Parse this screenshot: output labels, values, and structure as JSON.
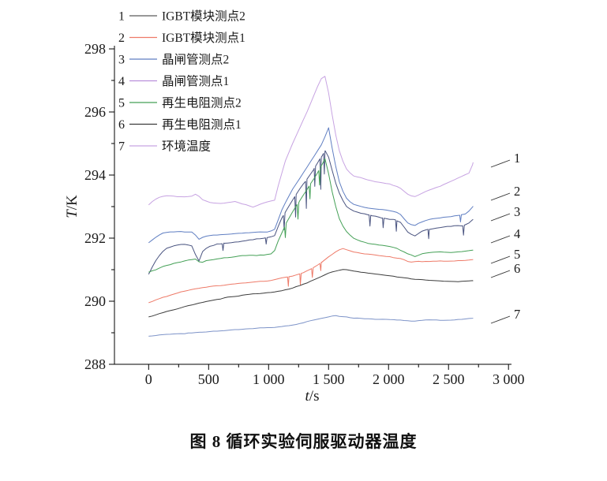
{
  "figure": {
    "caption": "图 8  循环实验伺服驱动器温度"
  },
  "chart_data": {
    "type": "line",
    "xlabel": "t/s",
    "ylabel": "T/K",
    "xlabel_italic": "t",
    "xlabel_unit": "/s",
    "ylabel_italic": "T",
    "ylabel_unit": "/K",
    "xlim": [
      -285,
      3025
    ],
    "ylim": [
      288,
      298
    ],
    "x_ticks": [
      0,
      500,
      1000,
      1500,
      2000,
      2500,
      3000
    ],
    "x_tick_labels": [
      "0",
      "500",
      "1 000",
      "1 500",
      "2 000",
      "2 500",
      "3 000"
    ],
    "y_ticks": [
      288,
      290,
      292,
      294,
      296,
      298
    ],
    "y_tick_labels": [
      "288",
      "290",
      "292",
      "294",
      "296",
      "298"
    ],
    "grid": false,
    "legend_position": "top-left",
    "legend": [
      {
        "num": "1",
        "label": "IGBT模块测点2",
        "color": "#5a5a5a"
      },
      {
        "num": "2",
        "label": "IGBT模块测点1",
        "color": "#ee7a68"
      },
      {
        "num": "3",
        "label": "晶闸管测点2",
        "color": "#5f7ec2"
      },
      {
        "num": "4",
        "label": "晶闸管测点1",
        "color": "#b98fdc"
      },
      {
        "num": "5",
        "label": "再生电阻测点2",
        "color": "#44a056"
      },
      {
        "num": "6",
        "label": "再生电阻测点1",
        "color": "#3c3c3c"
      },
      {
        "num": "7",
        "label": "环境温度",
        "color": "#c7a3e2"
      }
    ],
    "right_labels": [
      {
        "num": "1",
        "T": 294.55
      },
      {
        "num": "2",
        "T": 293.5
      },
      {
        "num": "3",
        "T": 292.85
      },
      {
        "num": "4",
        "T": 292.15
      },
      {
        "num": "5",
        "T": 291.5
      },
      {
        "num": "6",
        "T": 291.05
      },
      {
        "num": "7",
        "T": 289.6
      }
    ],
    "series": [
      {
        "num": "1",
        "name": "IGBT模块测点2",
        "color": "#c7a3e2",
        "amp": 0.028,
        "points": [
          [
            0,
            293.05
          ],
          [
            40,
            293.2
          ],
          [
            90,
            293.3
          ],
          [
            150,
            293.35
          ],
          [
            260,
            293.3
          ],
          [
            350,
            293.32
          ],
          [
            400,
            293.4
          ],
          [
            450,
            293.22
          ],
          [
            520,
            293.12
          ],
          [
            620,
            293.1
          ],
          [
            720,
            293.15
          ],
          [
            820,
            293.05
          ],
          [
            870,
            292.98
          ],
          [
            950,
            293.1
          ],
          [
            1050,
            293.2
          ],
          [
            1090,
            293.8
          ],
          [
            1140,
            294.45
          ],
          [
            1200,
            295.0
          ],
          [
            1260,
            295.5
          ],
          [
            1320,
            296.0
          ],
          [
            1380,
            296.55
          ],
          [
            1430,
            297.0
          ],
          [
            1465,
            297.2
          ],
          [
            1490,
            296.85
          ],
          [
            1515,
            296.25
          ],
          [
            1555,
            295.35
          ],
          [
            1600,
            294.6
          ],
          [
            1650,
            294.2
          ],
          [
            1700,
            293.98
          ],
          [
            1800,
            293.88
          ],
          [
            1900,
            293.78
          ],
          [
            2000,
            293.72
          ],
          [
            2090,
            293.62
          ],
          [
            2150,
            293.42
          ],
          [
            2210,
            293.3
          ],
          [
            2260,
            293.38
          ],
          [
            2320,
            293.5
          ],
          [
            2420,
            293.62
          ],
          [
            2520,
            293.8
          ],
          [
            2620,
            293.98
          ],
          [
            2685,
            294.08
          ],
          [
            2705,
            294.4
          ]
        ],
        "spikes": []
      },
      {
        "num": "2",
        "name": "IGBT模块测点1",
        "color": "#5f7ec2",
        "amp": 0.03,
        "points": [
          [
            0,
            291.85
          ],
          [
            50,
            292.0
          ],
          [
            110,
            292.15
          ],
          [
            170,
            292.2
          ],
          [
            280,
            292.2
          ],
          [
            370,
            292.18
          ],
          [
            420,
            291.95
          ],
          [
            470,
            292.05
          ],
          [
            540,
            292.1
          ],
          [
            650,
            292.12
          ],
          [
            760,
            292.15
          ],
          [
            880,
            292.18
          ],
          [
            1000,
            292.2
          ],
          [
            1055,
            292.28
          ],
          [
            1100,
            292.8
          ],
          [
            1150,
            293.2
          ],
          [
            1210,
            293.62
          ],
          [
            1270,
            293.95
          ],
          [
            1330,
            294.3
          ],
          [
            1390,
            294.65
          ],
          [
            1440,
            294.95
          ],
          [
            1480,
            295.3
          ],
          [
            1500,
            295.5
          ],
          [
            1520,
            295.05
          ],
          [
            1555,
            294.35
          ],
          [
            1595,
            293.7
          ],
          [
            1640,
            293.3
          ],
          [
            1700,
            293.08
          ],
          [
            1800,
            292.98
          ],
          [
            1900,
            292.92
          ],
          [
            2000,
            292.88
          ],
          [
            2090,
            292.8
          ],
          [
            2155,
            292.5
          ],
          [
            2210,
            292.38
          ],
          [
            2265,
            292.5
          ],
          [
            2350,
            292.6
          ],
          [
            2450,
            292.66
          ],
          [
            2550,
            292.7
          ],
          [
            2650,
            292.76
          ],
          [
            2705,
            293.0
          ]
        ],
        "spikes": [
          [
            2600,
            0.22
          ]
        ]
      },
      {
        "num": "3",
        "name": "晶闸管测点2",
        "color": "#4a5480",
        "amp": 0.05,
        "points": [
          [
            0,
            290.85
          ],
          [
            45,
            291.2
          ],
          [
            95,
            291.5
          ],
          [
            145,
            291.65
          ],
          [
            210,
            291.75
          ],
          [
            310,
            291.8
          ],
          [
            375,
            291.73
          ],
          [
            410,
            291.15
          ],
          [
            445,
            291.55
          ],
          [
            490,
            291.7
          ],
          [
            560,
            291.8
          ],
          [
            660,
            291.85
          ],
          [
            760,
            291.9
          ],
          [
            860,
            291.95
          ],
          [
            960,
            292.0
          ],
          [
            1050,
            292.08
          ],
          [
            1100,
            292.55
          ],
          [
            1155,
            292.95
          ],
          [
            1215,
            293.3
          ],
          [
            1275,
            293.65
          ],
          [
            1335,
            293.95
          ],
          [
            1395,
            294.3
          ],
          [
            1445,
            294.6
          ],
          [
            1480,
            294.85
          ],
          [
            1510,
            294.45
          ],
          [
            1550,
            293.85
          ],
          [
            1600,
            293.32
          ],
          [
            1650,
            293.0
          ],
          [
            1705,
            292.85
          ],
          [
            1805,
            292.75
          ],
          [
            1905,
            292.68
          ],
          [
            2005,
            292.6
          ],
          [
            2095,
            292.55
          ],
          [
            2160,
            292.2
          ],
          [
            2215,
            292.05
          ],
          [
            2270,
            292.2
          ],
          [
            2355,
            292.3
          ],
          [
            2455,
            292.35
          ],
          [
            2555,
            292.4
          ],
          [
            2655,
            292.42
          ],
          [
            2705,
            292.6
          ]
        ],
        "spikes": [
          [
            620,
            0.22
          ],
          [
            980,
            0.2
          ],
          [
            1130,
            0.5
          ],
          [
            1225,
            0.7
          ],
          [
            1315,
            0.9
          ],
          [
            1385,
            0.6
          ],
          [
            1435,
            1.0
          ],
          [
            1465,
            0.7
          ],
          [
            1845,
            0.35
          ],
          [
            1955,
            0.3
          ],
          [
            2065,
            0.35
          ],
          [
            2335,
            0.3
          ],
          [
            2625,
            0.3
          ]
        ]
      },
      {
        "num": "4",
        "name": "晶闸管测点1",
        "color": "#44a056",
        "amp": 0.04,
        "points": [
          [
            0,
            290.92
          ],
          [
            55,
            291.0
          ],
          [
            110,
            291.1
          ],
          [
            210,
            291.2
          ],
          [
            310,
            291.3
          ],
          [
            385,
            291.35
          ],
          [
            435,
            291.2
          ],
          [
            485,
            291.3
          ],
          [
            600,
            291.35
          ],
          [
            710,
            291.4
          ],
          [
            820,
            291.45
          ],
          [
            930,
            291.45
          ],
          [
            1040,
            291.5
          ],
          [
            1090,
            292.0
          ],
          [
            1150,
            292.5
          ],
          [
            1210,
            292.9
          ],
          [
            1270,
            293.25
          ],
          [
            1330,
            293.6
          ],
          [
            1390,
            293.95
          ],
          [
            1440,
            294.3
          ],
          [
            1475,
            294.55
          ],
          [
            1505,
            293.95
          ],
          [
            1545,
            293.2
          ],
          [
            1590,
            292.62
          ],
          [
            1640,
            292.25
          ],
          [
            1695,
            292.02
          ],
          [
            1755,
            291.92
          ],
          [
            1855,
            291.82
          ],
          [
            1955,
            291.76
          ],
          [
            2055,
            291.7
          ],
          [
            2150,
            291.52
          ],
          [
            2220,
            291.42
          ],
          [
            2285,
            291.5
          ],
          [
            2400,
            291.55
          ],
          [
            2510,
            291.55
          ],
          [
            2620,
            291.56
          ],
          [
            2705,
            291.62
          ]
        ],
        "spikes": [
          [
            1140,
            0.4
          ],
          [
            1245,
            0.5
          ],
          [
            1345,
            0.45
          ],
          [
            1425,
            0.5
          ]
        ]
      },
      {
        "num": "5",
        "name": "再生电阻测点2",
        "color": "#ee7a68",
        "amp": 0.035,
        "points": [
          [
            0,
            289.95
          ],
          [
            100,
            290.1
          ],
          [
            200,
            290.22
          ],
          [
            300,
            290.32
          ],
          [
            400,
            290.4
          ],
          [
            500,
            290.46
          ],
          [
            600,
            290.5
          ],
          [
            700,
            290.55
          ],
          [
            800,
            290.58
          ],
          [
            900,
            290.62
          ],
          [
            1000,
            290.65
          ],
          [
            1100,
            290.72
          ],
          [
            1200,
            290.8
          ],
          [
            1300,
            290.92
          ],
          [
            1400,
            291.12
          ],
          [
            1480,
            291.35
          ],
          [
            1550,
            291.55
          ],
          [
            1610,
            291.68
          ],
          [
            1660,
            291.62
          ],
          [
            1710,
            291.56
          ],
          [
            1810,
            291.5
          ],
          [
            1910,
            291.45
          ],
          [
            2010,
            291.4
          ],
          [
            2110,
            291.35
          ],
          [
            2175,
            291.22
          ],
          [
            2250,
            291.26
          ],
          [
            2400,
            291.27
          ],
          [
            2550,
            291.27
          ],
          [
            2705,
            291.32
          ]
        ],
        "spikes": [
          [
            1165,
            0.3
          ],
          [
            1265,
            0.35
          ],
          [
            1365,
            0.3
          ],
          [
            1435,
            0.25
          ]
        ]
      },
      {
        "num": "6",
        "name": "再生电阻测点1",
        "color": "#3c3c3c",
        "amp": 0.03,
        "points": [
          [
            0,
            289.5
          ],
          [
            100,
            289.62
          ],
          [
            200,
            289.72
          ],
          [
            300,
            289.82
          ],
          [
            400,
            289.92
          ],
          [
            500,
            290.0
          ],
          [
            600,
            290.08
          ],
          [
            700,
            290.15
          ],
          [
            800,
            290.2
          ],
          [
            900,
            290.24
          ],
          [
            1000,
            290.27
          ],
          [
            1100,
            290.32
          ],
          [
            1200,
            290.42
          ],
          [
            1300,
            290.55
          ],
          [
            1400,
            290.72
          ],
          [
            1500,
            290.88
          ],
          [
            1570,
            290.97
          ],
          [
            1620,
            291.0
          ],
          [
            1680,
            290.97
          ],
          [
            1780,
            290.92
          ],
          [
            1880,
            290.87
          ],
          [
            1980,
            290.82
          ],
          [
            2080,
            290.77
          ],
          [
            2180,
            290.72
          ],
          [
            2280,
            290.68
          ],
          [
            2380,
            290.66
          ],
          [
            2480,
            290.63
          ],
          [
            2580,
            290.62
          ],
          [
            2705,
            290.66
          ]
        ],
        "spikes": []
      },
      {
        "num": "7",
        "name": "环境温度",
        "color": "#7d93c8",
        "amp": 0.03,
        "points": [
          [
            0,
            288.9
          ],
          [
            150,
            288.95
          ],
          [
            300,
            288.98
          ],
          [
            450,
            289.02
          ],
          [
            600,
            289.06
          ],
          [
            750,
            289.1
          ],
          [
            900,
            289.14
          ],
          [
            1050,
            289.17
          ],
          [
            1200,
            289.25
          ],
          [
            1350,
            289.38
          ],
          [
            1470,
            289.48
          ],
          [
            1550,
            289.55
          ],
          [
            1620,
            289.5
          ],
          [
            1700,
            289.46
          ],
          [
            1800,
            289.45
          ],
          [
            1900,
            289.42
          ],
          [
            2000,
            289.42
          ],
          [
            2100,
            289.4
          ],
          [
            2200,
            289.37
          ],
          [
            2300,
            289.4
          ],
          [
            2400,
            289.4
          ],
          [
            2500,
            289.4
          ],
          [
            2600,
            289.42
          ],
          [
            2705,
            289.46
          ]
        ],
        "spikes": []
      }
    ]
  }
}
